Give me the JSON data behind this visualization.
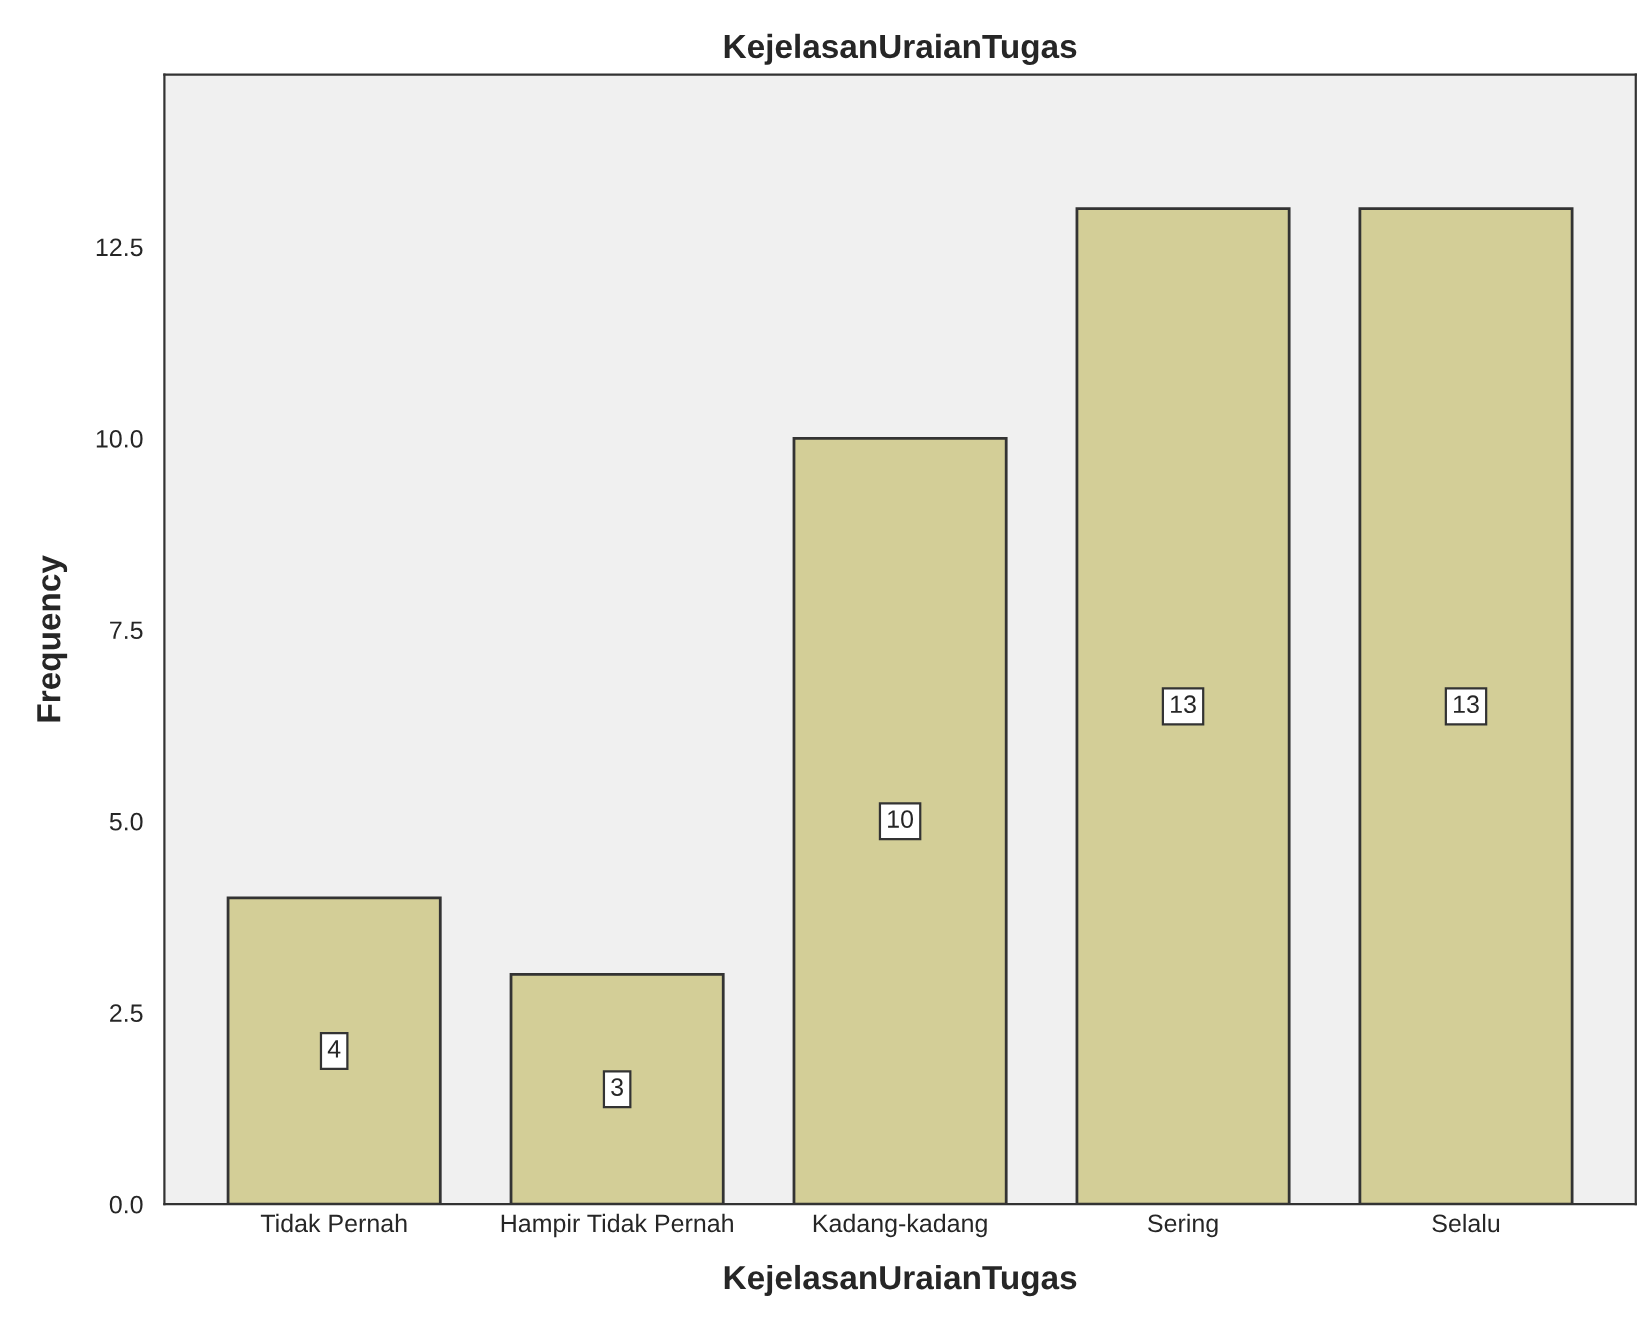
{
  "chart_data": {
    "type": "bar",
    "title": "KejelasanUraianTugas",
    "xlabel": "KejelasanUraianTugas",
    "ylabel": "Frequency",
    "categories": [
      "Tidak Pernah",
      "Hampir Tidak Pernah",
      "Kadang-kadang",
      "Sering",
      "Selalu"
    ],
    "values": [
      4,
      3,
      10,
      13,
      13
    ],
    "color": "#d3ce97",
    "ylim": [
      0,
      14.75
    ],
    "yticks": [
      {
        "value": 0,
        "label": "0.0"
      },
      {
        "value": 2.5,
        "label": "2.5"
      },
      {
        "value": 5,
        "label": "5.0"
      },
      {
        "value": 7.5,
        "label": "7.5"
      },
      {
        "value": 10,
        "label": "10.0"
      },
      {
        "value": 12.5,
        "label": "12.5"
      }
    ],
    "data_labels": true,
    "grid": false,
    "legend": false
  }
}
